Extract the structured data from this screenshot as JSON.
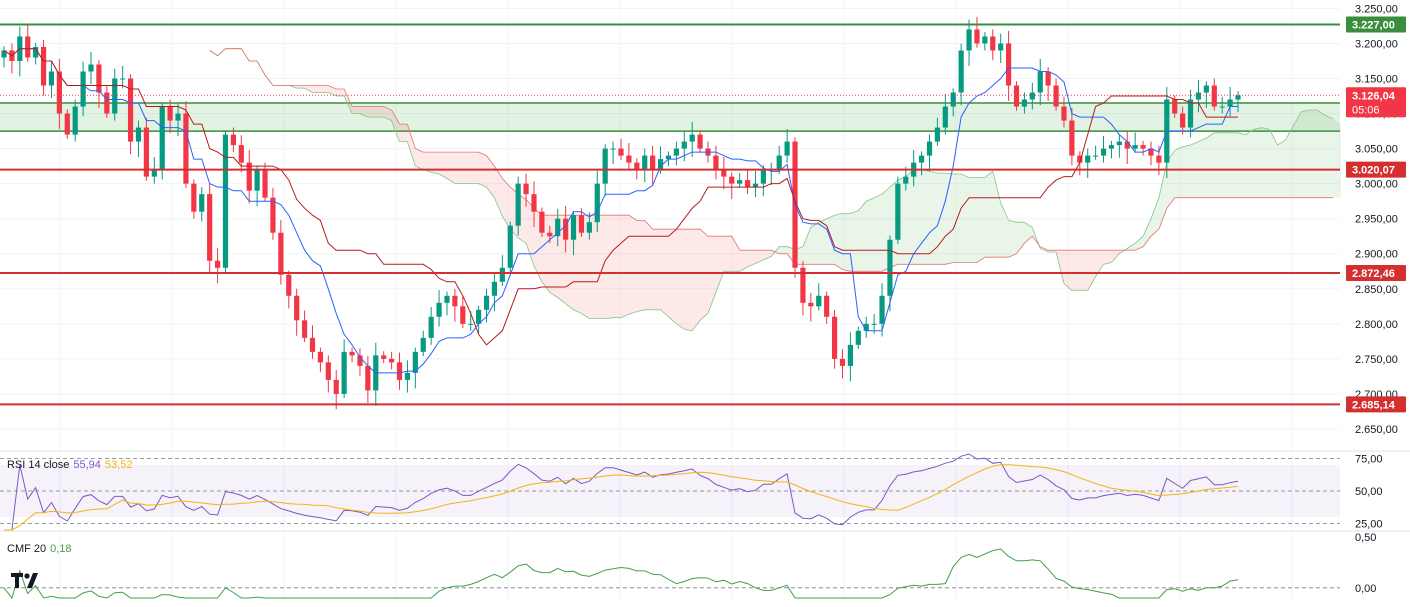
{
  "chart_data": [
    {
      "type": "candlestick",
      "title": "",
      "ylim": [
        2620,
        3262
      ],
      "price_ticks": [
        "3.250,00",
        "3.200,00",
        "3.150,00",
        "3.100,00",
        "3.050,00",
        "3.000,00",
        "2.950,00",
        "2.900,00",
        "2.850,00",
        "2.800,00",
        "2.750,00",
        "2.700,00",
        "2.650,00"
      ],
      "price_tick_values": [
        3250,
        3200,
        3150,
        3100,
        3050,
        3000,
        2950,
        2900,
        2850,
        2800,
        2750,
        2700,
        2650
      ],
      "current_price": {
        "value": 3126.04,
        "label": "3.126,04",
        "countdown": "05:06"
      },
      "levels": [
        {
          "value": 3227.0,
          "label": "3.227,00",
          "color": "#388e3c"
        },
        {
          "value": 3020.07,
          "label": "3.020,07",
          "color": "#d32f2f"
        },
        {
          "value": 2872.46,
          "label": "2.872,46",
          "color": "#d32f2f"
        },
        {
          "value": 2685.14,
          "label": "2.685,14",
          "color": "#d32f2f"
        }
      ],
      "zone": {
        "from": 3075,
        "to": 3115,
        "color": "#4caf50"
      },
      "close_series": [
        3190,
        3175,
        3210,
        3180,
        3195,
        3140,
        3160,
        3100,
        3070,
        3110,
        3160,
        3170,
        3130,
        3100,
        3150,
        3150,
        3060,
        3080,
        3010,
        3020,
        3110,
        3090,
        3100,
        3000,
        2960,
        2985,
        2890,
        2880,
        3070,
        3055,
        3030,
        2990,
        3020,
        2980,
        2930,
        2870,
        2840,
        2805,
        2780,
        2760,
        2745,
        2720,
        2700,
        2760,
        2755,
        2740,
        2705,
        2755,
        2750,
        2745,
        2720,
        2730,
        2760,
        2780,
        2810,
        2830,
        2840,
        2825,
        2800,
        2800,
        2820,
        2840,
        2860,
        2880,
        2940,
        3000,
        2985,
        2960,
        2930,
        2925,
        2950,
        2920,
        2955,
        2930,
        2945,
        3000,
        3050,
        3050,
        3040,
        3030,
        3020,
        3040,
        3020,
        3035,
        3040,
        3050,
        3060,
        3070,
        3050,
        3040,
        3020,
        3010,
        3000,
        3005,
        2995,
        3000,
        3020,
        3020,
        3040,
        3060,
        2880,
        2830,
        2825,
        2840,
        2810,
        2750,
        2740,
        2770,
        2790,
        2800,
        2800,
        2840,
        2920,
        3000,
        3010,
        3030,
        3040,
        3060,
        3080,
        3110,
        3130,
        3190,
        3220,
        3200,
        3210,
        3190,
        3200,
        3140,
        3110,
        3120,
        3130,
        3160,
        3140,
        3110,
        3090,
        3040,
        3030,
        3040,
        3040,
        3050,
        3055,
        3060,
        3050,
        3055,
        3050,
        3040,
        3030,
        3120,
        3100,
        3080,
        3120,
        3130,
        3140,
        3110,
        3110,
        3120,
        3126
      ],
      "ichimoku": {
        "tenkan_color": "#2962ff",
        "kijun_color": "#b71c1c",
        "cloud_bull_color": "#4caf50",
        "cloud_bear_color": "#ef5350"
      }
    },
    {
      "type": "line",
      "title": "RSI 14 close",
      "ylim": [
        20,
        80
      ],
      "ticks": [
        "75,00",
        "50,00",
        "25,00"
      ],
      "tick_values": [
        75,
        50,
        25
      ],
      "band": [
        30,
        70
      ],
      "series": [
        {
          "name": "RSI",
          "value_label": "55,94",
          "color": "#7e57c2"
        },
        {
          "name": "MA",
          "value_label": "53,52",
          "color": "#f2b50f"
        }
      ]
    },
    {
      "type": "line",
      "title": "CMF 20",
      "ylim": [
        -0.12,
        0.55
      ],
      "ticks": [
        "0,50",
        "0,00"
      ],
      "tick_values": [
        0.5,
        0.0
      ],
      "series": [
        {
          "name": "CMF",
          "value_label": "0,18",
          "color": "#43a047"
        }
      ]
    }
  ]
}
